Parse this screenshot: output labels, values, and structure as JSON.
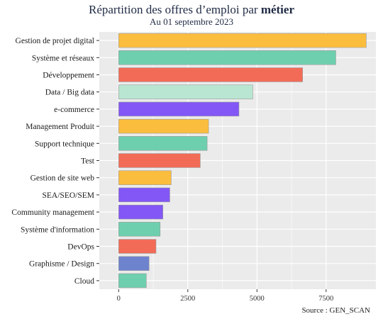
{
  "header": {
    "title_prefix": "Répartition des offres d’emploi par ",
    "title_bold": "métier",
    "subtitle": "Au 01 septembre 2023"
  },
  "footer": {
    "source": "Source : GEN_SCAN"
  },
  "chart_data": {
    "type": "bar",
    "orientation": "horizontal",
    "categories": [
      "Gestion de projet digital",
      "Système et réseaux",
      "Développement",
      "Data / Big data",
      "e-commerce",
      "Management Produit",
      "Support technique",
      "Test",
      "Gestion de site web",
      "SEA/SEO/SEM",
      "Community management",
      "Système d'information",
      "DevOps",
      "Graphisme / Design",
      "Cloud"
    ],
    "values": [
      8950,
      7850,
      6650,
      4850,
      4350,
      3250,
      3200,
      2950,
      1900,
      1850,
      1600,
      1500,
      1350,
      1100,
      1000
    ],
    "colors": [
      "#FBBD3E",
      "#6ECFAE",
      "#F26B57",
      "#B9E6D2",
      "#8257F5",
      "#FBBD3E",
      "#6ECFAE",
      "#F26B57",
      "#FBBD3E",
      "#8257F5",
      "#8257F5",
      "#6ECFAE",
      "#F26B57",
      "#6E83CE",
      "#6ECFAE"
    ],
    "xlim": [
      -700,
      9300
    ],
    "xticks": [
      0,
      2500,
      5000,
      7500
    ],
    "xtick_labels": [
      "0",
      "2500",
      "5000",
      "7500"
    ],
    "grid": true,
    "background": "#EBEBEB",
    "gridline_color": "#FFFFFF"
  }
}
